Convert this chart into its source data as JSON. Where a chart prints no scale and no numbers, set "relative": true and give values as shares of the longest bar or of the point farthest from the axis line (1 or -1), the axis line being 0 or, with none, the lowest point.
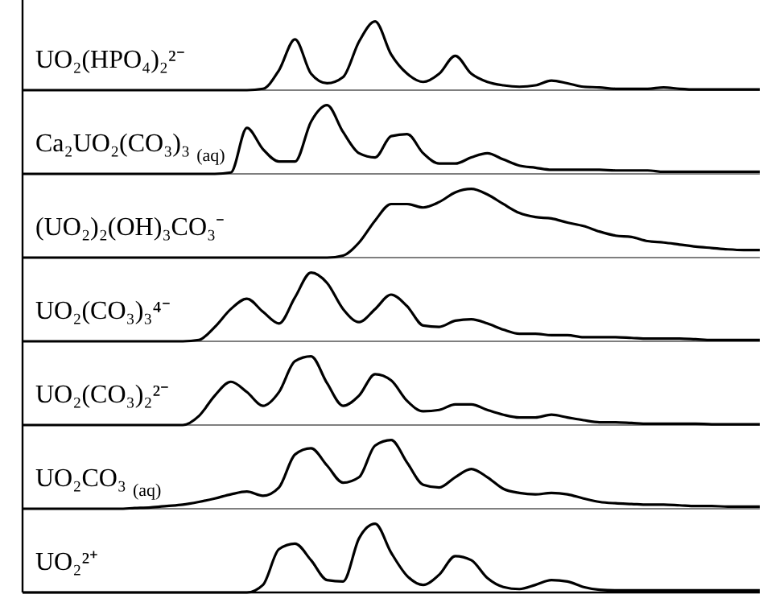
{
  "chart_data": [
    {
      "type": "line",
      "relative": true,
      "categories": [
        null,
        null,
        null,
        null,
        null,
        null,
        null,
        null,
        null,
        null,
        null,
        null,
        null,
        null,
        null,
        null,
        null,
        null,
        null,
        null,
        null,
        null,
        null,
        null,
        null,
        null,
        null,
        null,
        null,
        null,
        null,
        null,
        null,
        null,
        null,
        null,
        null,
        null,
        null,
        null,
        null,
        null,
        null,
        null,
        null,
        null,
        null
      ],
      "series": [
        {
          "name": "UO₂(HPO₄)₂²⁻",
          "color": "#000000",
          "values": [
            0,
            0,
            0,
            0,
            0,
            0,
            0,
            0,
            0,
            0,
            0,
            0,
            0,
            0,
            0,
            0.02,
            0.29,
            0.74,
            0.24,
            0.1,
            0.19,
            0.71,
            1,
            0.52,
            0.24,
            0.12,
            0.24,
            0.5,
            0.24,
            0.12,
            0.07,
            0.05,
            0.07,
            0.14,
            0.1,
            0.05,
            0.04,
            0.02,
            0.02,
            0.02,
            0.04,
            0.02,
            0.01,
            0.01,
            0.01,
            0.01,
            0.01
          ]
        }
      ]
    },
    {
      "type": "line",
      "relative": true,
      "categories": [
        null,
        null,
        null,
        null,
        null,
        null,
        null,
        null,
        null,
        null,
        null,
        null,
        null,
        null,
        null,
        null,
        null,
        null,
        null,
        null,
        null,
        null,
        null,
        null,
        null,
        null,
        null,
        null,
        null,
        null,
        null,
        null,
        null,
        null,
        null,
        null,
        null,
        null,
        null,
        null,
        null,
        null,
        null,
        null,
        null,
        null,
        null
      ],
      "series": [
        {
          "name": "Ca₂UO₂(CO₃)₃ $_{(aq)}$",
          "color": "#000000",
          "values": [
            0,
            0,
            0,
            0,
            0,
            0,
            0,
            0,
            0,
            0,
            0,
            0,
            0,
            0.02,
            0.67,
            0.36,
            0.18,
            0.18,
            0.76,
            1,
            0.61,
            0.3,
            0.24,
            0.55,
            0.58,
            0.3,
            0.15,
            0.15,
            0.24,
            0.3,
            0.21,
            0.12,
            0.09,
            0.06,
            0.06,
            0.06,
            0.06,
            0.05,
            0.05,
            0.05,
            0.03,
            0.03,
            0.03,
            0.03,
            0.03,
            0.03,
            0.03
          ]
        }
      ]
    },
    {
      "type": "line",
      "relative": true,
      "categories": [
        null,
        null,
        null,
        null,
        null,
        null,
        null,
        null,
        null,
        null,
        null,
        null,
        null,
        null,
        null,
        null,
        null,
        null,
        null,
        null,
        null,
        null,
        null,
        null,
        null,
        null,
        null,
        null,
        null,
        null,
        null,
        null,
        null,
        null,
        null,
        null,
        null,
        null,
        null,
        null,
        null,
        null,
        null,
        null,
        null,
        null,
        null
      ],
      "series": [
        {
          "name": "(UO₂)₂(OH)₃CO₃⁻",
          "color": "#000000",
          "values": [
            0,
            0,
            0,
            0,
            0,
            0,
            0,
            0,
            0,
            0,
            0,
            0,
            0,
            0,
            0,
            0,
            0,
            0,
            0,
            0,
            0.03,
            0.22,
            0.54,
            0.78,
            0.78,
            0.73,
            0.81,
            0.95,
            1,
            0.92,
            0.78,
            0.65,
            0.59,
            0.57,
            0.51,
            0.46,
            0.38,
            0.32,
            0.3,
            0.24,
            0.22,
            0.19,
            0.16,
            0.14,
            0.12,
            0.11,
            0.11
          ]
        }
      ]
    },
    {
      "type": "line",
      "relative": true,
      "categories": [
        null,
        null,
        null,
        null,
        null,
        null,
        null,
        null,
        null,
        null,
        null,
        null,
        null,
        null,
        null,
        null,
        null,
        null,
        null,
        null,
        null,
        null,
        null,
        null,
        null,
        null,
        null,
        null,
        null,
        null,
        null,
        null,
        null,
        null,
        null,
        null,
        null,
        null,
        null,
        null,
        null,
        null,
        null,
        null,
        null,
        null,
        null
      ],
      "series": [
        {
          "name": "UO₂(CO₃)₃⁴⁻",
          "color": "#000000",
          "values": [
            0,
            0,
            0,
            0,
            0,
            0,
            0,
            0,
            0,
            0,
            0,
            0.02,
            0.21,
            0.47,
            0.62,
            0.43,
            0.26,
            0.64,
            1,
            0.85,
            0.47,
            0.28,
            0.47,
            0.68,
            0.51,
            0.23,
            0.21,
            0.3,
            0.32,
            0.26,
            0.17,
            0.11,
            0.11,
            0.09,
            0.09,
            0.06,
            0.06,
            0.06,
            0.05,
            0.04,
            0.04,
            0.04,
            0.03,
            0.02,
            0.02,
            0.02,
            0.02
          ]
        }
      ]
    },
    {
      "type": "line",
      "relative": true,
      "categories": [
        null,
        null,
        null,
        null,
        null,
        null,
        null,
        null,
        null,
        null,
        null,
        null,
        null,
        null,
        null,
        null,
        null,
        null,
        null,
        null,
        null,
        null,
        null,
        null,
        null,
        null,
        null,
        null,
        null,
        null,
        null,
        null,
        null,
        null,
        null,
        null,
        null,
        null,
        null,
        null,
        null,
        null,
        null,
        null,
        null,
        null,
        null
      ],
      "series": [
        {
          "name": "UO₂(CO₃)₂²⁻",
          "color": "#000000",
          "values": [
            0,
            0,
            0,
            0,
            0,
            0,
            0,
            0,
            0,
            0,
            0,
            0.13,
            0.43,
            0.63,
            0.48,
            0.28,
            0.48,
            0.93,
            1,
            0.61,
            0.28,
            0.43,
            0.74,
            0.65,
            0.35,
            0.2,
            0.22,
            0.3,
            0.3,
            0.22,
            0.15,
            0.11,
            0.11,
            0.15,
            0.11,
            0.07,
            0.04,
            0.04,
            0.03,
            0.02,
            0.02,
            0.02,
            0.02,
            0.01,
            0.01,
            0.01,
            0.01
          ]
        }
      ]
    },
    {
      "type": "line",
      "relative": true,
      "categories": [
        null,
        null,
        null,
        null,
        null,
        null,
        null,
        null,
        null,
        null,
        null,
        null,
        null,
        null,
        null,
        null,
        null,
        null,
        null,
        null,
        null,
        null,
        null,
        null,
        null,
        null,
        null,
        null,
        null,
        null,
        null,
        null,
        null,
        null,
        null,
        null,
        null,
        null,
        null,
        null,
        null,
        null,
        null,
        null,
        null,
        null,
        null
      ],
      "series": [
        {
          "name": "UO₂CO₃ $_{(aq)}$",
          "color": "#000000",
          "values": [
            0,
            0,
            0,
            0,
            0,
            0,
            0,
            0.01,
            0.02,
            0.04,
            0.06,
            0.1,
            0.15,
            0.21,
            0.25,
            0.19,
            0.31,
            0.79,
            0.88,
            0.63,
            0.38,
            0.46,
            0.92,
            1,
            0.67,
            0.35,
            0.31,
            0.46,
            0.58,
            0.46,
            0.29,
            0.23,
            0.21,
            0.23,
            0.21,
            0.15,
            0.1,
            0.08,
            0.07,
            0.06,
            0.06,
            0.05,
            0.04,
            0.04,
            0.03,
            0.03,
            0.03
          ]
        }
      ]
    },
    {
      "type": "line",
      "relative": true,
      "categories": [
        null,
        null,
        null,
        null,
        null,
        null,
        null,
        null,
        null,
        null,
        null,
        null,
        null,
        null,
        null,
        null,
        null,
        null,
        null,
        null,
        null,
        null,
        null,
        null,
        null,
        null,
        null,
        null,
        null,
        null,
        null,
        null,
        null,
        null,
        null,
        null,
        null,
        null,
        null,
        null,
        null,
        null,
        null,
        null,
        null,
        null,
        null
      ],
      "series": [
        {
          "name": "UO₂²⁺",
          "color": "#000000",
          "values": [
            0,
            0,
            0,
            0,
            0,
            0,
            0,
            0,
            0,
            0,
            0,
            0,
            0,
            0,
            0,
            0.11,
            0.63,
            0.71,
            0.47,
            0.18,
            0.16,
            0.79,
            1,
            0.58,
            0.24,
            0.11,
            0.26,
            0.53,
            0.47,
            0.21,
            0.08,
            0.05,
            0.11,
            0.18,
            0.16,
            0.08,
            0.04,
            0.03,
            0.03,
            0.03,
            0.03,
            0.03,
            0.03,
            0.03,
            0.03,
            0.03,
            0.03
          ]
        }
      ]
    }
  ]
}
